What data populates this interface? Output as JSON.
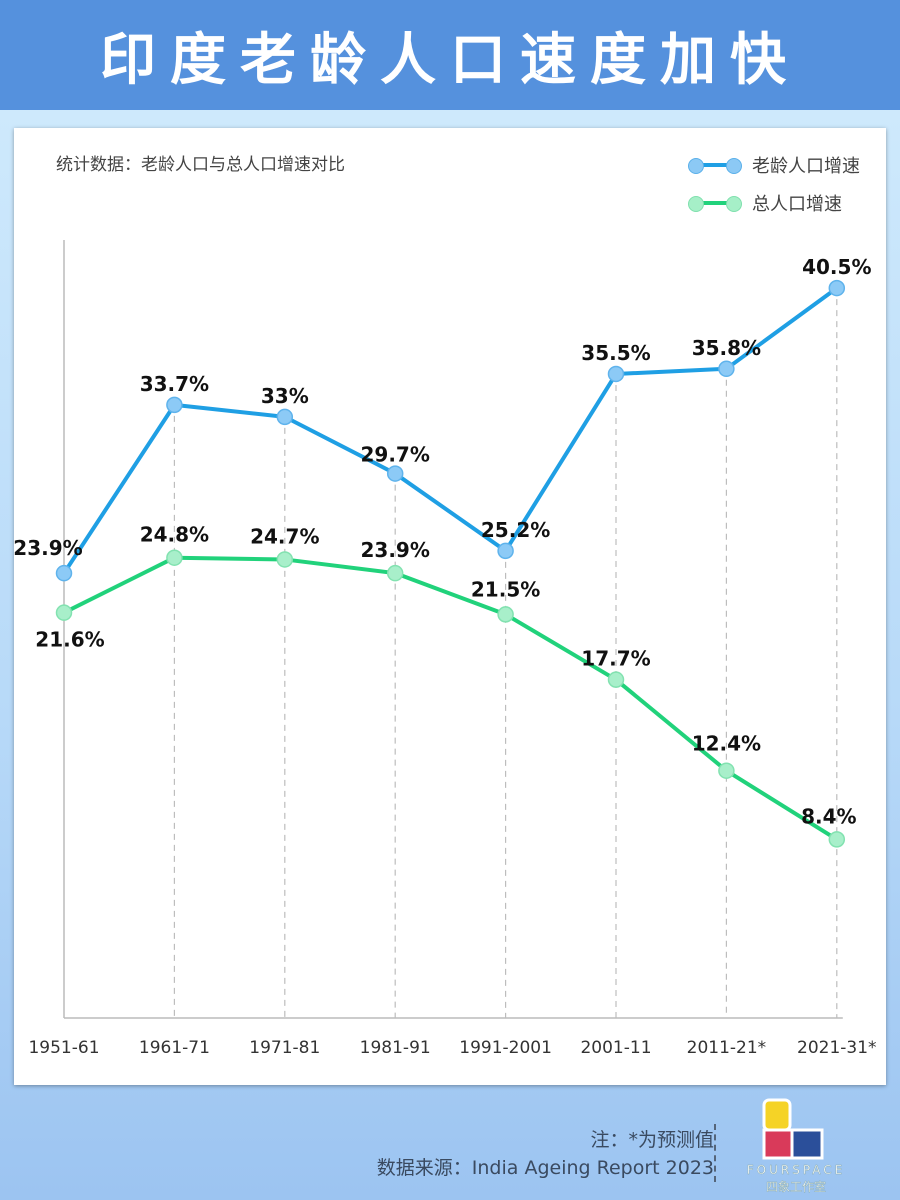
{
  "header": {
    "title": "印度老龄人口速度加快"
  },
  "chart_data": {
    "type": "line",
    "title": "统计数据：老龄人口与总人口增速对比",
    "categories": [
      "1951-61",
      "1961-71",
      "1971-81",
      "1981-91",
      "1991-2001",
      "2001-11",
      "2011-21*",
      "2021-31*"
    ],
    "series": [
      {
        "name": "老龄人口增速",
        "values": [
          23.9,
          33.7,
          33,
          29.7,
          25.2,
          35.5,
          35.8,
          40.5
        ],
        "labels": [
          "23.9%",
          "33.7%",
          "33%",
          "29.7%",
          "25.2%",
          "35.5%",
          "35.8%",
          "40.5%"
        ],
        "color": "#1f9fe4"
      },
      {
        "name": "总人口增速",
        "values": [
          21.6,
          24.8,
          24.7,
          23.9,
          21.5,
          17.7,
          12.4,
          8.4
        ],
        "labels": [
          "21.6%",
          "24.8%",
          "24.7%",
          "23.9%",
          "21.5%",
          "17.7%",
          "12.4%",
          "8.4%"
        ],
        "color": "#21d27b"
      }
    ],
    "unit": "%",
    "ylim": [
      -2,
      43.3
    ],
    "grid": "vertical dashed",
    "legend": "top-right"
  },
  "footer": {
    "note": "注：*为预测值",
    "source": "数据来源：India Ageing Report 2023"
  },
  "logo": {
    "text": "FOURSPACE",
    "subtext": "四象工作室"
  },
  "colors": {
    "header": "#5591dd",
    "background": "#c4e2fb"
  }
}
